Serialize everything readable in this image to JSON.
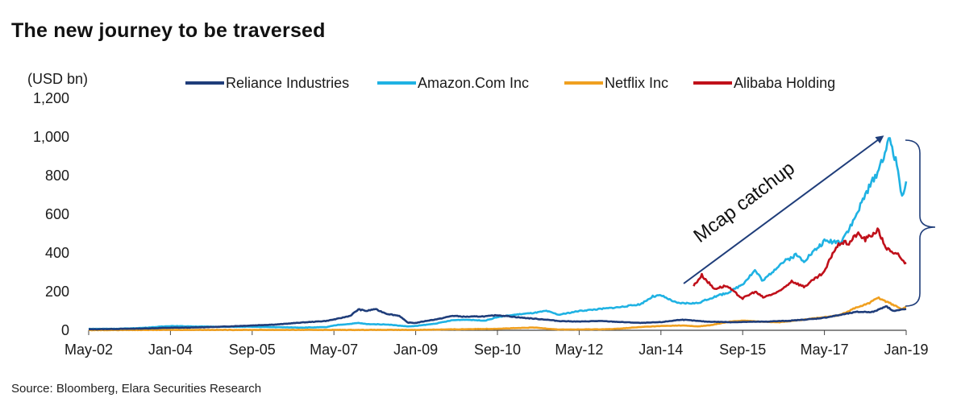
{
  "title": "The new journey to be traversed",
  "source": "Source: Bloomberg, Elara Securities Research",
  "chart_data": {
    "type": "line",
    "ylabel": "(USD bn)",
    "ylim": [
      0,
      1200
    ],
    "yticks": [
      0,
      200,
      400,
      600,
      800,
      1000,
      1200
    ],
    "ytick_labels": [
      "0",
      "200",
      "400",
      "600",
      "800",
      "1,000",
      "1,200"
    ],
    "x_tick_labels": [
      "May-02",
      "Jan-04",
      "Sep-05",
      "May-07",
      "Jan-09",
      "Sep-10",
      "May-12",
      "Jan-14",
      "Sep-15",
      "May-17",
      "Jan-19"
    ],
    "x_ticks": [
      "2002-05",
      "2004-01",
      "2005-09",
      "2007-05",
      "2009-01",
      "2010-09",
      "2012-05",
      "2014-01",
      "2015-09",
      "2017-05",
      "2019-01"
    ],
    "grid": false,
    "legend_position": "top",
    "annotation": "Mcap catchup",
    "series": [
      {
        "name": "Reliance Industries",
        "color": "#1f3d7a",
        "points": [
          [
            "2002-05",
            5
          ],
          [
            "2003-01",
            7
          ],
          [
            "2003-06",
            9
          ],
          [
            "2004-01",
            13
          ],
          [
            "2004-06",
            14
          ],
          [
            "2005-01",
            18
          ],
          [
            "2005-09",
            25
          ],
          [
            "2006-03",
            30
          ],
          [
            "2006-09",
            40
          ],
          [
            "2007-03",
            48
          ],
          [
            "2007-06",
            60
          ],
          [
            "2007-09",
            75
          ],
          [
            "2007-11",
            108
          ],
          [
            "2008-01",
            100
          ],
          [
            "2008-03",
            110
          ],
          [
            "2008-06",
            85
          ],
          [
            "2008-09",
            75
          ],
          [
            "2008-11",
            40
          ],
          [
            "2009-01",
            38
          ],
          [
            "2009-04",
            50
          ],
          [
            "2009-07",
            60
          ],
          [
            "2009-10",
            75
          ],
          [
            "2010-01",
            70
          ],
          [
            "2010-06",
            72
          ],
          [
            "2010-09",
            78
          ],
          [
            "2010-12",
            72
          ],
          [
            "2011-03",
            65
          ],
          [
            "2011-06",
            60
          ],
          [
            "2011-09",
            55
          ],
          [
            "2011-12",
            48
          ],
          [
            "2012-05",
            45
          ],
          [
            "2012-10",
            48
          ],
          [
            "2013-03",
            43
          ],
          [
            "2013-08",
            38
          ],
          [
            "2014-01",
            42
          ],
          [
            "2014-06",
            55
          ],
          [
            "2014-12",
            45
          ],
          [
            "2015-06",
            42
          ],
          [
            "2015-09",
            43
          ],
          [
            "2016-03",
            45
          ],
          [
            "2016-09",
            50
          ],
          [
            "2017-03",
            60
          ],
          [
            "2017-05",
            65
          ],
          [
            "2017-09",
            80
          ],
          [
            "2018-01",
            95
          ],
          [
            "2018-05",
            95
          ],
          [
            "2018-08",
            125
          ],
          [
            "2018-10",
            100
          ],
          [
            "2019-01",
            110
          ]
        ]
      },
      {
        "name": "Amazon.Com Inc",
        "color": "#1fb2e3",
        "points": [
          [
            "2002-05",
            7
          ],
          [
            "2003-01",
            8
          ],
          [
            "2003-06",
            12
          ],
          [
            "2004-01",
            22
          ],
          [
            "2004-06",
            20
          ],
          [
            "2005-01",
            18
          ],
          [
            "2005-09",
            18
          ],
          [
            "2006-03",
            16
          ],
          [
            "2006-09",
            14
          ],
          [
            "2007-03",
            16
          ],
          [
            "2007-06",
            28
          ],
          [
            "2007-09",
            33
          ],
          [
            "2007-11",
            38
          ],
          [
            "2008-01",
            32
          ],
          [
            "2008-06",
            30
          ],
          [
            "2008-11",
            20
          ],
          [
            "2009-01",
            22
          ],
          [
            "2009-06",
            35
          ],
          [
            "2009-10",
            52
          ],
          [
            "2010-01",
            55
          ],
          [
            "2010-06",
            50
          ],
          [
            "2010-09",
            68
          ],
          [
            "2011-01",
            80
          ],
          [
            "2011-06",
            90
          ],
          [
            "2011-09",
            100
          ],
          [
            "2011-12",
            80
          ],
          [
            "2012-05",
            100
          ],
          [
            "2012-10",
            110
          ],
          [
            "2013-03",
            120
          ],
          [
            "2013-08",
            135
          ],
          [
            "2013-11",
            175
          ],
          [
            "2014-01",
            180
          ],
          [
            "2014-05",
            140
          ],
          [
            "2014-10",
            140
          ],
          [
            "2015-01",
            165
          ],
          [
            "2015-06",
            200
          ],
          [
            "2015-09",
            240
          ],
          [
            "2015-12",
            310
          ],
          [
            "2016-02",
            255
          ],
          [
            "2016-06",
            340
          ],
          [
            "2016-10",
            390
          ],
          [
            "2016-12",
            360
          ],
          [
            "2017-03",
            420
          ],
          [
            "2017-05",
            460
          ],
          [
            "2017-09",
            460
          ],
          [
            "2017-12",
            560
          ],
          [
            "2018-03",
            700
          ],
          [
            "2018-06",
            820
          ],
          [
            "2018-09",
            990
          ],
          [
            "2018-11",
            830
          ],
          [
            "2018-12",
            690
          ],
          [
            "2019-01",
            770
          ]
        ]
      },
      {
        "name": "Netflix Inc",
        "color": "#f0a020",
        "points": [
          [
            "2002-05",
            1
          ],
          [
            "2004-01",
            2
          ],
          [
            "2005-09",
            2
          ],
          [
            "2007-05",
            2
          ],
          [
            "2009-01",
            2
          ],
          [
            "2010-09",
            8
          ],
          [
            "2011-06",
            14
          ],
          [
            "2011-12",
            4
          ],
          [
            "2012-05",
            4
          ],
          [
            "2013-01",
            6
          ],
          [
            "2013-09",
            18
          ],
          [
            "2014-01",
            22
          ],
          [
            "2014-06",
            25
          ],
          [
            "2014-10",
            20
          ],
          [
            "2015-01",
            26
          ],
          [
            "2015-06",
            45
          ],
          [
            "2015-09",
            50
          ],
          [
            "2016-01",
            45
          ],
          [
            "2016-06",
            42
          ],
          [
            "2016-12",
            55
          ],
          [
            "2017-05",
            68
          ],
          [
            "2017-09",
            80
          ],
          [
            "2018-01",
            120
          ],
          [
            "2018-04",
            140
          ],
          [
            "2018-06",
            170
          ],
          [
            "2018-08",
            150
          ],
          [
            "2018-10",
            130
          ],
          [
            "2018-12",
            110
          ],
          [
            "2019-01",
            120
          ]
        ]
      },
      {
        "name": "Alibaba Holding",
        "color": "#c0101a",
        "points": [
          [
            "2014-09",
            230
          ],
          [
            "2014-11",
            285
          ],
          [
            "2015-02",
            215
          ],
          [
            "2015-05",
            230
          ],
          [
            "2015-08",
            180
          ],
          [
            "2015-09",
            165
          ],
          [
            "2015-12",
            200
          ],
          [
            "2016-02",
            170
          ],
          [
            "2016-06",
            200
          ],
          [
            "2016-09",
            255
          ],
          [
            "2016-12",
            225
          ],
          [
            "2017-03",
            270
          ],
          [
            "2017-05",
            300
          ],
          [
            "2017-07",
            400
          ],
          [
            "2017-09",
            455
          ],
          [
            "2017-11",
            450
          ],
          [
            "2018-01",
            500
          ],
          [
            "2018-03",
            470
          ],
          [
            "2018-05",
            500
          ],
          [
            "2018-06",
            520
          ],
          [
            "2018-08",
            430
          ],
          [
            "2018-10",
            390
          ],
          [
            "2018-11",
            400
          ],
          [
            "2018-12",
            360
          ],
          [
            "2019-01",
            350
          ]
        ]
      }
    ]
  }
}
